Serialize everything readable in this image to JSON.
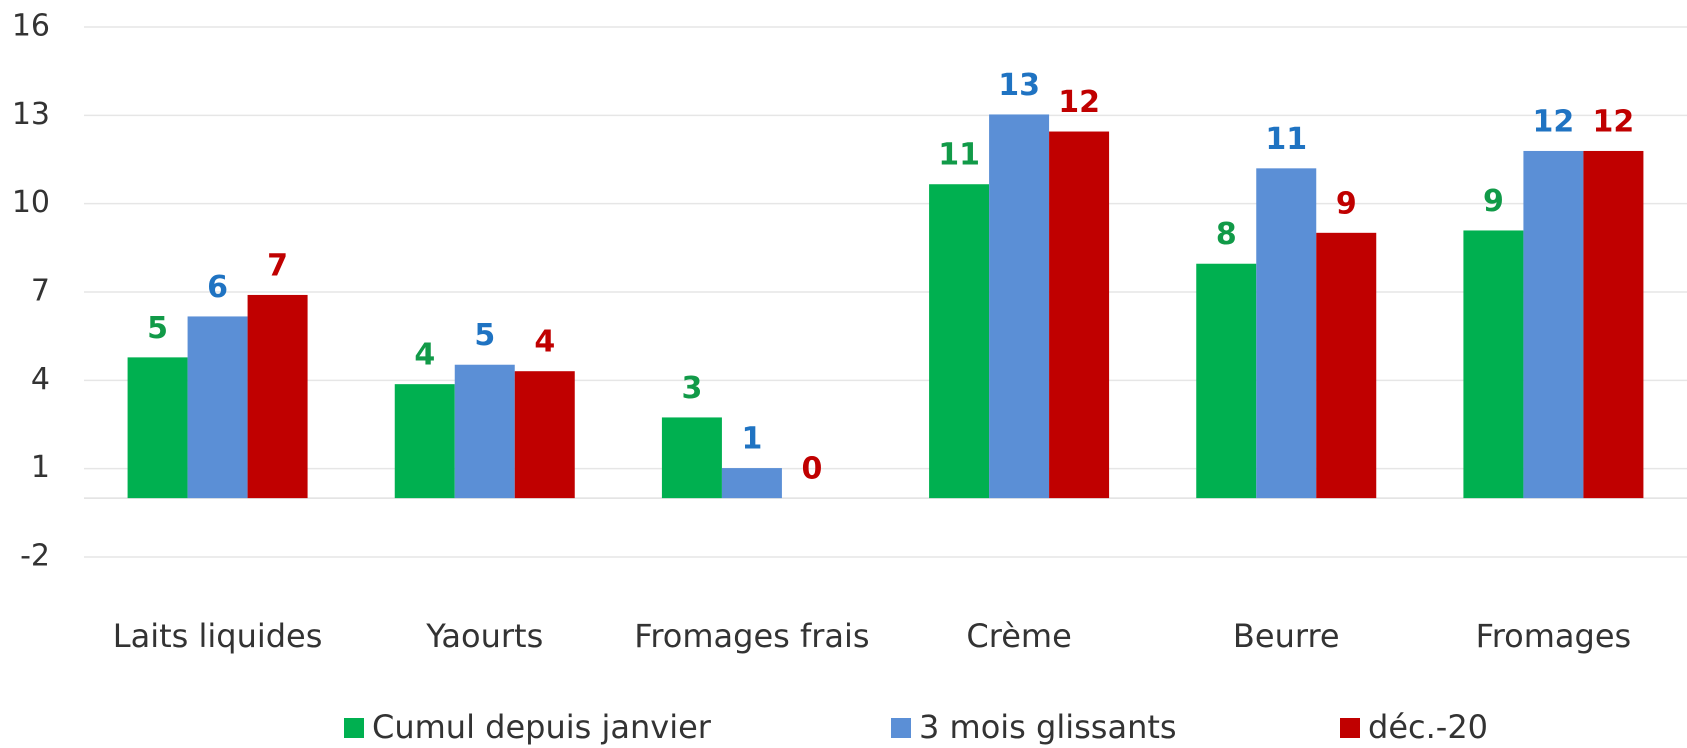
{
  "chart_data": {
    "type": "bar",
    "categories": [
      "Laits liquides",
      "Yaourts",
      "Fromages frais",
      "Crème",
      "Beurre",
      "Fromages"
    ],
    "series": [
      {
        "name": "Cumul depuis janvier",
        "color": "#00b050",
        "label_color": "#119a48",
        "values": [
          4.78,
          3.87,
          2.74,
          10.66,
          7.96,
          9.09
        ],
        "value_labels": [
          "5",
          "4",
          "3",
          "11",
          "8",
          "9"
        ]
      },
      {
        "name": "3 mois glissants",
        "color": "#5b8fd6",
        "label_color": "#1f73c2",
        "values": [
          6.17,
          4.53,
          1.02,
          13.03,
          11.2,
          11.79
        ],
        "value_labels": [
          "6",
          "5",
          "1",
          "13",
          "11",
          "12"
        ]
      },
      {
        "name": "déc.-20",
        "color": "#c00000",
        "label_color": "#c00000",
        "values": [
          6.9,
          4.31,
          0.0,
          12.45,
          9.01,
          11.79
        ],
        "value_labels": [
          "7",
          "4",
          "0",
          "12",
          "9",
          "12"
        ]
      }
    ],
    "ylim": [
      -2,
      16
    ],
    "yticks": [
      -2,
      1,
      4,
      7,
      10,
      13,
      16
    ],
    "grid": true
  }
}
